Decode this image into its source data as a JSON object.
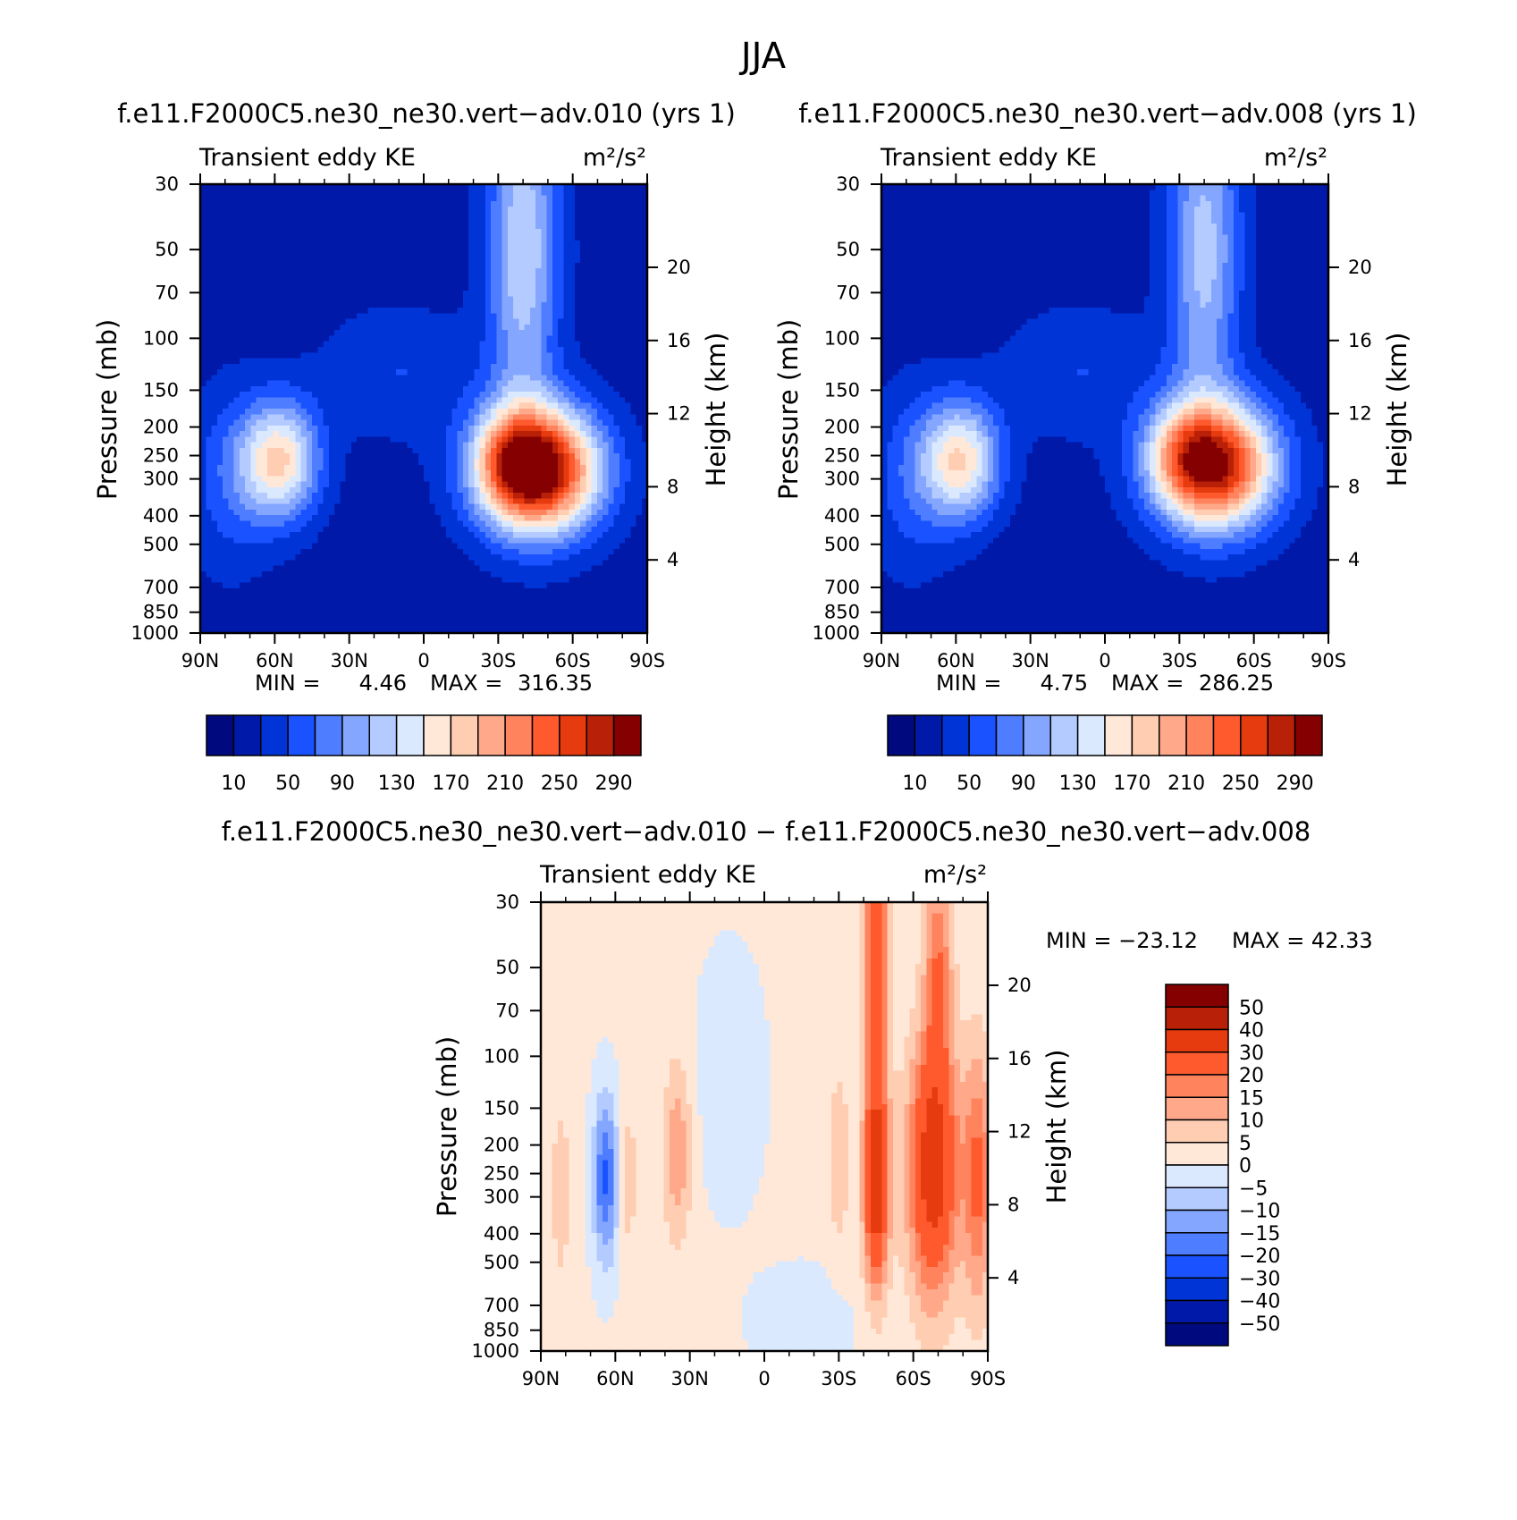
{
  "page": {
    "title": "JJA"
  },
  "colormaps": {
    "ke": [
      "#000a7e",
      "#0019a8",
      "#0034d6",
      "#1a52ff",
      "#4f7dff",
      "#84a6ff",
      "#b3cbff",
      "#dbe9ff",
      "#ffe8d8",
      "#ffcdb2",
      "#ffa98a",
      "#ff835d",
      "#ff5a2e",
      "#e63a0f",
      "#b82007",
      "#850000"
    ],
    "diff": [
      "#000a7e",
      "#0019a8",
      "#0034d6",
      "#1a52ff",
      "#4f7dff",
      "#84a6ff",
      "#b3cbff",
      "#dbe9ff",
      "#ffe8d8",
      "#ffcdb2",
      "#ffa98a",
      "#ff835d",
      "#ff5a2e",
      "#e63a0f",
      "#b82007",
      "#850000"
    ]
  },
  "chart_data": [
    {
      "type": "heatmap",
      "title": "f.e11.F2000C5.ne30_ne30.vert−adv.010 (yrs 1)",
      "left_label": "Transient eddy KE",
      "right_label": "m²/s²",
      "xlabel": "",
      "ylabel": "Pressure (mb)",
      "y2label": "Height (km)",
      "xticks": [
        "90N",
        "60N",
        "30N",
        "0",
        "30S",
        "60S",
        "90S"
      ],
      "yticks": [
        "30",
        "50",
        "70",
        "100",
        "150",
        "200",
        "250",
        "300",
        "400",
        "500",
        "700",
        "850",
        "1000"
      ],
      "y2ticks": [
        "4",
        "8",
        "12",
        "16",
        "20"
      ],
      "min_text": "MIN =",
      "min_value": "4.46",
      "max_text": "MAX =",
      "max_value": "316.35",
      "colorbar_labels": [
        "10",
        "50",
        "90",
        "130",
        "170",
        "210",
        "250",
        "290"
      ],
      "background": 20,
      "blobs": [
        {
          "lat": -46,
          "p": 280,
          "a": 300,
          "slat": 17,
          "slp": 0.34
        },
        {
          "lat": -34,
          "p": 250,
          "a": 60,
          "slat": 9,
          "slp": 0.25
        },
        {
          "lat": 58,
          "p": 260,
          "a": 150,
          "slat": 11,
          "slp": 0.32
        },
        {
          "lat": -40,
          "p": 50,
          "a": 110,
          "slat": 10,
          "slp": 0.9
        },
        {
          "lat": 78,
          "p": 300,
          "a": 40,
          "slat": 12,
          "slp": 0.5
        },
        {
          "lat": 10,
          "p": 130,
          "a": 30,
          "slat": 22,
          "slp": 0.35
        }
      ]
    },
    {
      "type": "heatmap",
      "title": "f.e11.F2000C5.ne30_ne30.vert−adv.008 (yrs 1)",
      "left_label": "Transient eddy KE",
      "right_label": "m²/s²",
      "xlabel": "",
      "ylabel": "Pressure (mb)",
      "y2label": "Height (km)",
      "xticks": [
        "90N",
        "60N",
        "30N",
        "0",
        "30S",
        "60S",
        "90S"
      ],
      "yticks": [
        "30",
        "50",
        "70",
        "100",
        "150",
        "200",
        "250",
        "300",
        "400",
        "500",
        "700",
        "850",
        "1000"
      ],
      "y2ticks": [
        "4",
        "8",
        "12",
        "16",
        "20"
      ],
      "min_text": "MIN =",
      "min_value": "4.75",
      "max_text": "MAX =",
      "max_value": "286.25",
      "colorbar_labels": [
        "10",
        "50",
        "90",
        "130",
        "170",
        "210",
        "250",
        "290"
      ],
      "background": 20,
      "blobs": [
        {
          "lat": -44,
          "p": 270,
          "a": 270,
          "slat": 17,
          "slp": 0.34
        },
        {
          "lat": -30,
          "p": 240,
          "a": 50,
          "slat": 9,
          "slp": 0.25
        },
        {
          "lat": 58,
          "p": 260,
          "a": 145,
          "slat": 11,
          "slp": 0.32
        },
        {
          "lat": -40,
          "p": 50,
          "a": 100,
          "slat": 10,
          "slp": 0.9
        },
        {
          "lat": 78,
          "p": 300,
          "a": 40,
          "slat": 12,
          "slp": 0.5
        },
        {
          "lat": 10,
          "p": 130,
          "a": 30,
          "slat": 22,
          "slp": 0.35
        }
      ]
    },
    {
      "type": "heatmap",
      "title": "f.e11.F2000C5.ne30_ne30.vert−adv.010 − f.e11.F2000C5.ne30_ne30.vert−adv.008",
      "left_label": "Transient eddy KE",
      "right_label": "m²/s²",
      "xlabel": "",
      "ylabel": "Pressure (mb)",
      "y2label": "Height (km)",
      "xticks": [
        "90N",
        "60N",
        "30N",
        "0",
        "30S",
        "60S",
        "90S"
      ],
      "yticks": [
        "30",
        "50",
        "70",
        "100",
        "150",
        "200",
        "250",
        "300",
        "400",
        "500",
        "700",
        "850",
        "1000"
      ],
      "y2ticks": [
        "4",
        "8",
        "12",
        "16",
        "20"
      ],
      "min_text": "MIN = −23.12",
      "max_text": "MAX =   42.33",
      "colorbar_labels": [
        "50",
        "40",
        "30",
        "20",
        "15",
        "10",
        "5",
        "0",
        "−5",
        "−10",
        "−15",
        "−20",
        "−30",
        "−40",
        "−50"
      ],
      "background": 1,
      "blobs": [
        {
          "lat": 64,
          "p": 260,
          "a": -22,
          "slat": 3.5,
          "slp": 0.45
        },
        {
          "lat": 82,
          "p": 290,
          "a": 9,
          "slat": 2.5,
          "slp": 0.45
        },
        {
          "lat": 55,
          "p": 260,
          "a": 8,
          "slat": 2.5,
          "slp": 0.4
        },
        {
          "lat": 35,
          "p": 210,
          "a": 13,
          "slat": 4,
          "slp": 0.5
        },
        {
          "lat": -45,
          "p": 280,
          "a": 35,
          "slat": 3.5,
          "slp": 0.55
        },
        {
          "lat": -45,
          "p": 45,
          "a": 28,
          "slat": 3.5,
          "slp": 0.9
        },
        {
          "lat": -68,
          "p": 240,
          "a": 36,
          "slat": 7,
          "slp": 0.7
        },
        {
          "lat": -70,
          "p": 50,
          "a": 18,
          "slat": 4,
          "slp": 0.6
        },
        {
          "lat": -86,
          "p": 260,
          "a": 20,
          "slat": 4,
          "slp": 0.7
        },
        {
          "lat": -30,
          "p": 220,
          "a": 8,
          "slat": 3,
          "slp": 0.5
        },
        {
          "lat": 14,
          "p": 120,
          "a": -4,
          "slat": 10,
          "slp": 0.7
        },
        {
          "lat": -15,
          "p": 800,
          "a": -4,
          "slat": 14,
          "slp": 0.3
        }
      ]
    }
  ]
}
